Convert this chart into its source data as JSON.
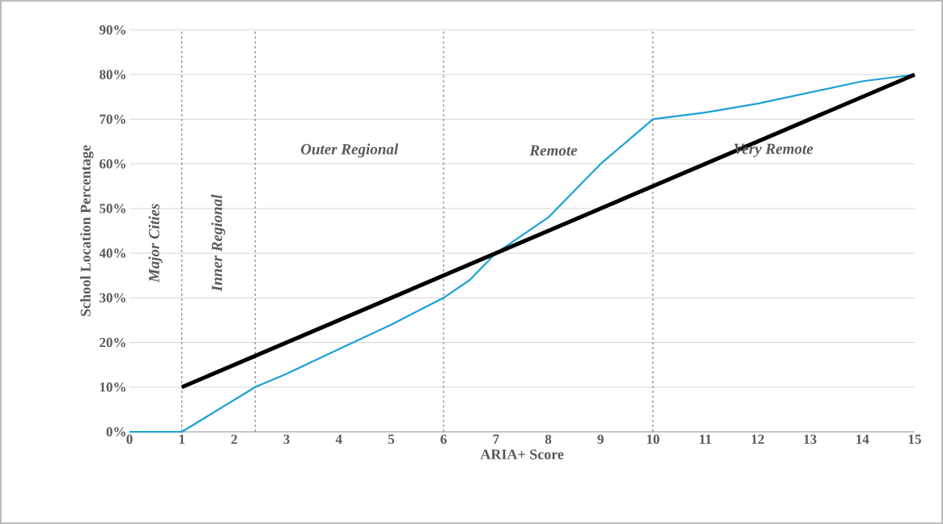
{
  "chart_data": {
    "type": "line",
    "xlabel": "ARIA+ Score",
    "ylabel": "School Location Percentage",
    "xlim": [
      0,
      15
    ],
    "ylim": [
      0,
      90
    ],
    "xticks": [
      0,
      1,
      2,
      3,
      4,
      5,
      6,
      7,
      8,
      9,
      10,
      11,
      12,
      13,
      14,
      15
    ],
    "yticks": [
      {
        "value": 0,
        "label": "0%"
      },
      {
        "value": 10,
        "label": "10%"
      },
      {
        "value": 20,
        "label": "20%"
      },
      {
        "value": 30,
        "label": "30%"
      },
      {
        "value": 40,
        "label": "40%"
      },
      {
        "value": 50,
        "label": "50%"
      },
      {
        "value": 60,
        "label": "60%"
      },
      {
        "value": 70,
        "label": "70%"
      },
      {
        "value": 80,
        "label": "80%"
      },
      {
        "value": 90,
        "label": "90%"
      }
    ],
    "grid": "y",
    "series": [
      {
        "type": "line",
        "color": "#1ba1d8",
        "x": [
          0,
          1,
          2.4,
          3,
          4,
          5,
          6,
          6.5,
          7,
          8,
          9,
          9.5,
          10,
          11,
          12,
          13,
          14,
          15
        ],
        "values": [
          0,
          0,
          10,
          13,
          18.5,
          24,
          30,
          34,
          40,
          48,
          60,
          65,
          70,
          71.5,
          73.5,
          76,
          78.5,
          80
        ]
      },
      {
        "type": "line",
        "color": "#000000",
        "x": [
          1,
          15
        ],
        "values": [
          10,
          80
        ]
      }
    ],
    "ref_lines": [
      {
        "axis": "x",
        "value": 1,
        "line_style": "dashed"
      },
      {
        "axis": "x",
        "value": 2.4,
        "line_style": "dashed"
      },
      {
        "axis": "x",
        "value": 6,
        "line_style": "dashed"
      },
      {
        "axis": "x",
        "value": 10,
        "line_style": "dashed"
      }
    ],
    "annotations": [
      "Major Cities",
      "Inner Regional",
      "Outer Regional",
      "Remote",
      "Very Remote"
    ]
  }
}
